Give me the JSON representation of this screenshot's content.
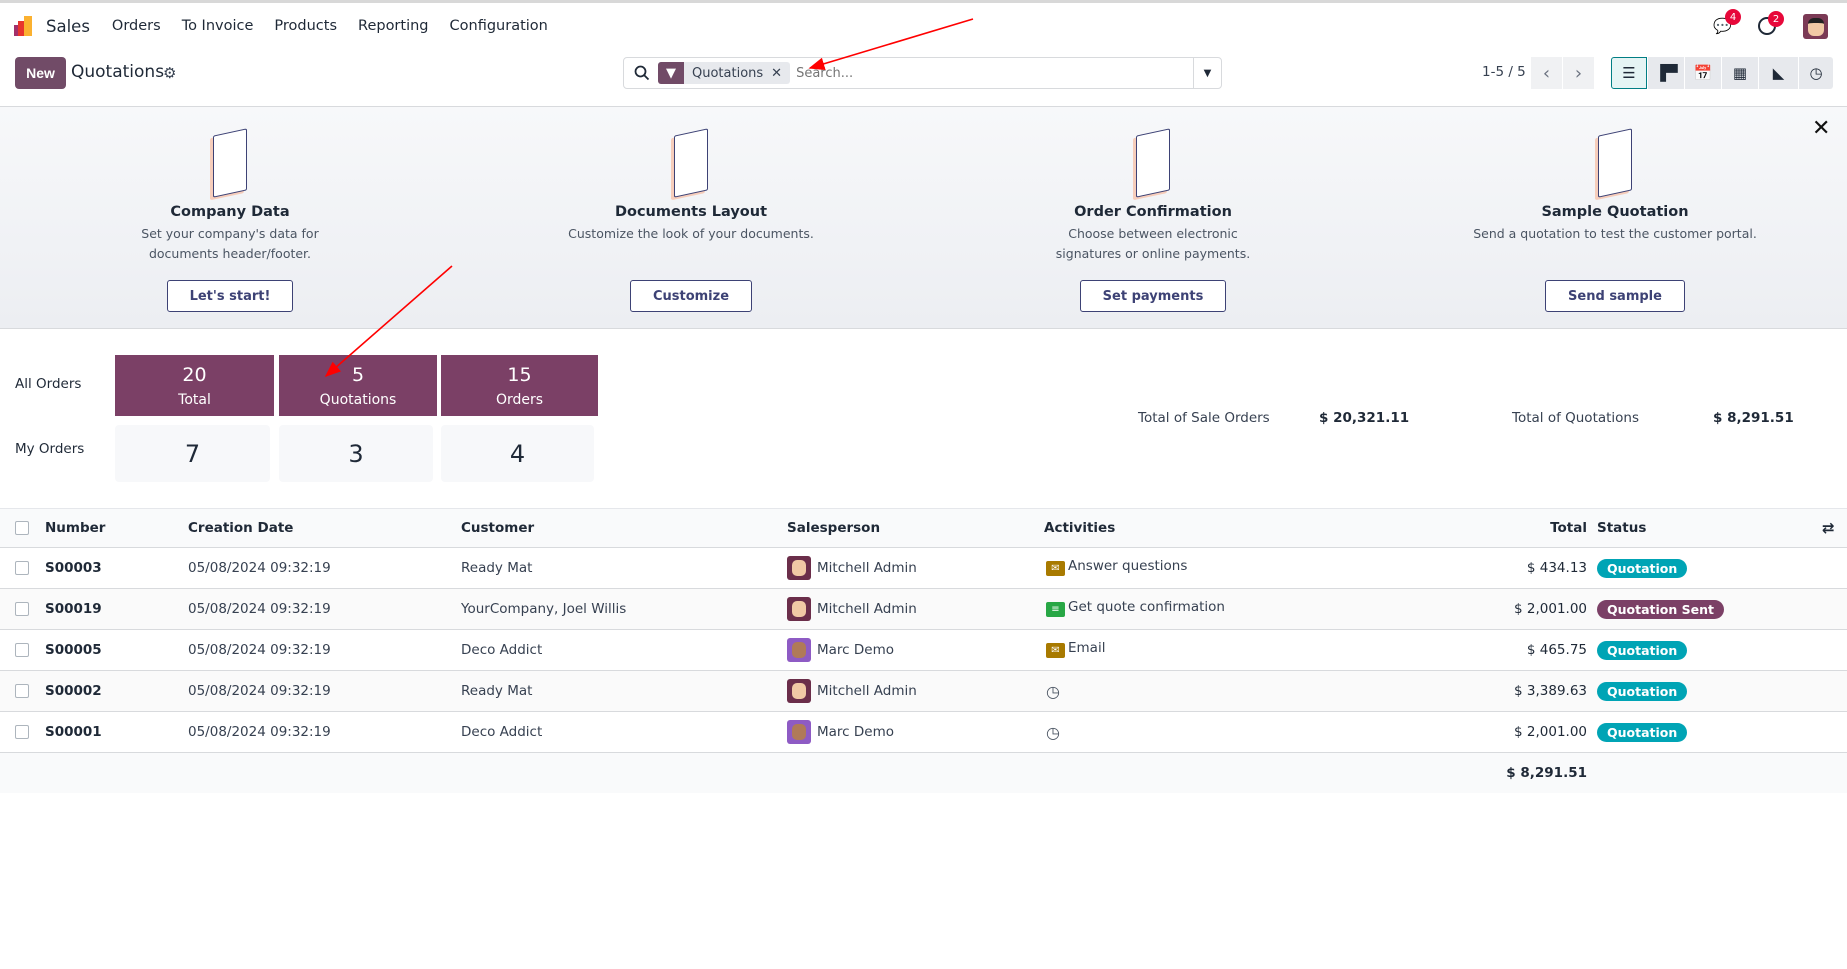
{
  "nav": {
    "app": "Sales",
    "menu": [
      "Orders",
      "To Invoice",
      "Products",
      "Reporting",
      "Configuration"
    ],
    "chat_count": "4",
    "activity_count": "2"
  },
  "control": {
    "new_label": "New",
    "title": "Quotations",
    "facet": "Quotations",
    "search_placeholder": "Search...",
    "pager": "1-5 / 5",
    "views": [
      "list-icon",
      "kanban-icon",
      "calendar-icon",
      "pivot-icon",
      "graph-icon",
      "activity-icon"
    ]
  },
  "onboarding": {
    "steps": [
      {
        "title": "Company Data",
        "desc": "Set your company's data for documents header/footer.",
        "button": "Let's start!"
      },
      {
        "title": "Documents Layout",
        "desc": "Customize the look of your documents.",
        "button": "Customize"
      },
      {
        "title": "Order Confirmation",
        "desc": "Choose between electronic signatures or online payments.",
        "button": "Set payments"
      },
      {
        "title": "Sample Quotation",
        "desc": "Send a quotation to test the customer portal.",
        "button": "Send sample"
      }
    ]
  },
  "stats": {
    "all_label": "All Orders",
    "my_label": "My Orders",
    "all": [
      {
        "n": "20",
        "l": "Total"
      },
      {
        "n": "5",
        "l": "Quotations"
      },
      {
        "n": "15",
        "l": "Orders"
      }
    ],
    "my": [
      "7",
      "3",
      "4"
    ],
    "sale_label": "Total of Sale Orders",
    "sale_value": "$ 20,321.11",
    "quot_label": "Total of Quotations",
    "quot_value": "$ 8,291.51"
  },
  "table": {
    "headers": {
      "number": "Number",
      "date": "Creation Date",
      "customer": "Customer",
      "salesperson": "Salesperson",
      "activities": "Activities",
      "total": "Total",
      "status": "Status"
    },
    "rows": [
      {
        "number": "S00003",
        "date": "05/08/2024 09:32:19",
        "customer": "Ready Mat",
        "salesperson": "Mitchell Admin",
        "activity": "Answer questions",
        "activity_icon": "email",
        "total": "$ 434.13",
        "status": "Quotation"
      },
      {
        "number": "S00019",
        "date": "05/08/2024 09:32:19",
        "customer": "YourCompany, Joel Willis",
        "salesperson": "Mitchell Admin",
        "activity": "Get quote confirmation",
        "activity_icon": "todo",
        "total": "$ 2,001.00",
        "status": "Quotation Sent"
      },
      {
        "number": "S00005",
        "date": "05/08/2024 09:32:19",
        "customer": "Deco Addict",
        "salesperson": "Marc Demo",
        "activity": "Email",
        "activity_icon": "email",
        "total": "$ 465.75",
        "status": "Quotation"
      },
      {
        "number": "S00002",
        "date": "05/08/2024 09:32:19",
        "customer": "Ready Mat",
        "salesperson": "Mitchell Admin",
        "activity": "",
        "activity_icon": "clock",
        "total": "$ 3,389.63",
        "status": "Quotation"
      },
      {
        "number": "S00001",
        "date": "05/08/2024 09:32:19",
        "customer": "Deco Addict",
        "salesperson": "Marc Demo",
        "activity": "",
        "activity_icon": "clock",
        "total": "$ 2,001.00",
        "status": "Quotation"
      }
    ],
    "footer_total": "$ 8,291.51"
  },
  "colors": {
    "brand": "#714b67",
    "quotation": "#00a4b5",
    "sent": "#7b4066",
    "annotation": "#ff0000"
  }
}
